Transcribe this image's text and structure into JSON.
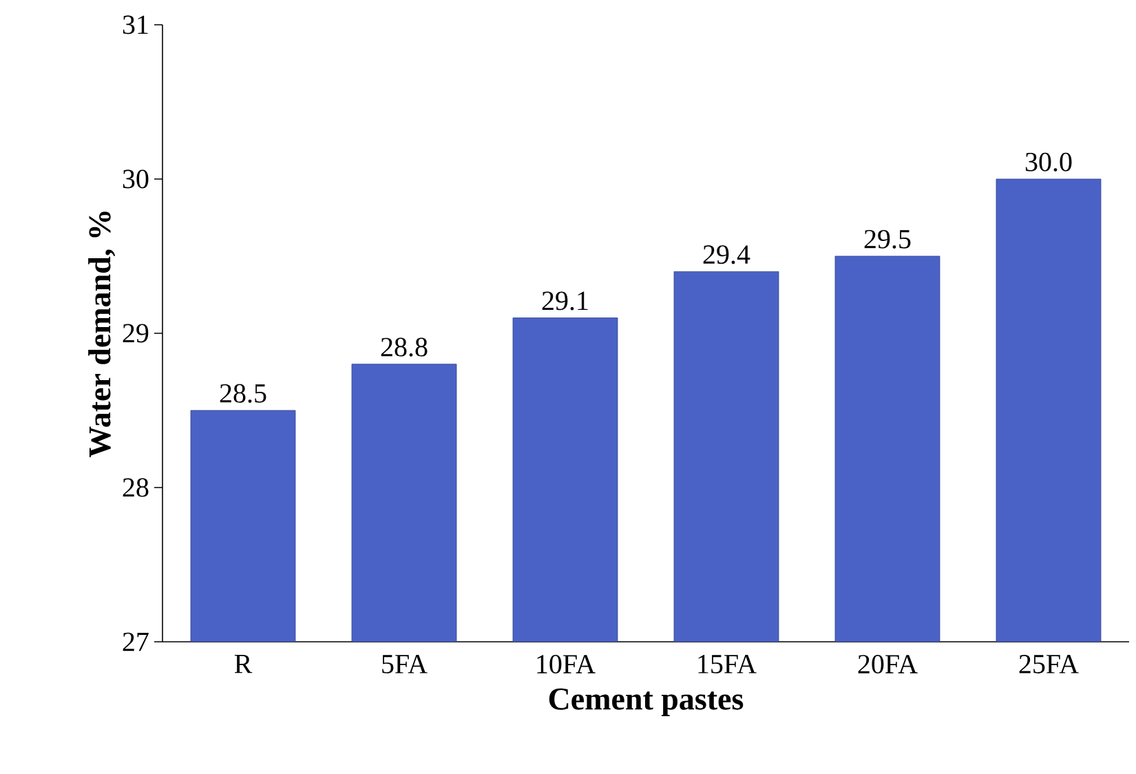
{
  "chart_data": {
    "type": "bar",
    "xlabel": "Cement pastes",
    "ylabel": "Water demand, %",
    "categories": [
      "R",
      "5FA",
      "10FA",
      "15FA",
      "20FA",
      "25FA"
    ],
    "values": [
      28.5,
      28.8,
      29.1,
      29.4,
      29.5,
      30.0
    ],
    "value_labels": [
      "28.5",
      "28.8",
      "29.1",
      "29.4",
      "29.5",
      "30.0"
    ],
    "color": "#4a62c6",
    "ylim": [
      27,
      31
    ],
    "yticks": [
      27,
      28,
      29,
      30,
      31
    ]
  }
}
